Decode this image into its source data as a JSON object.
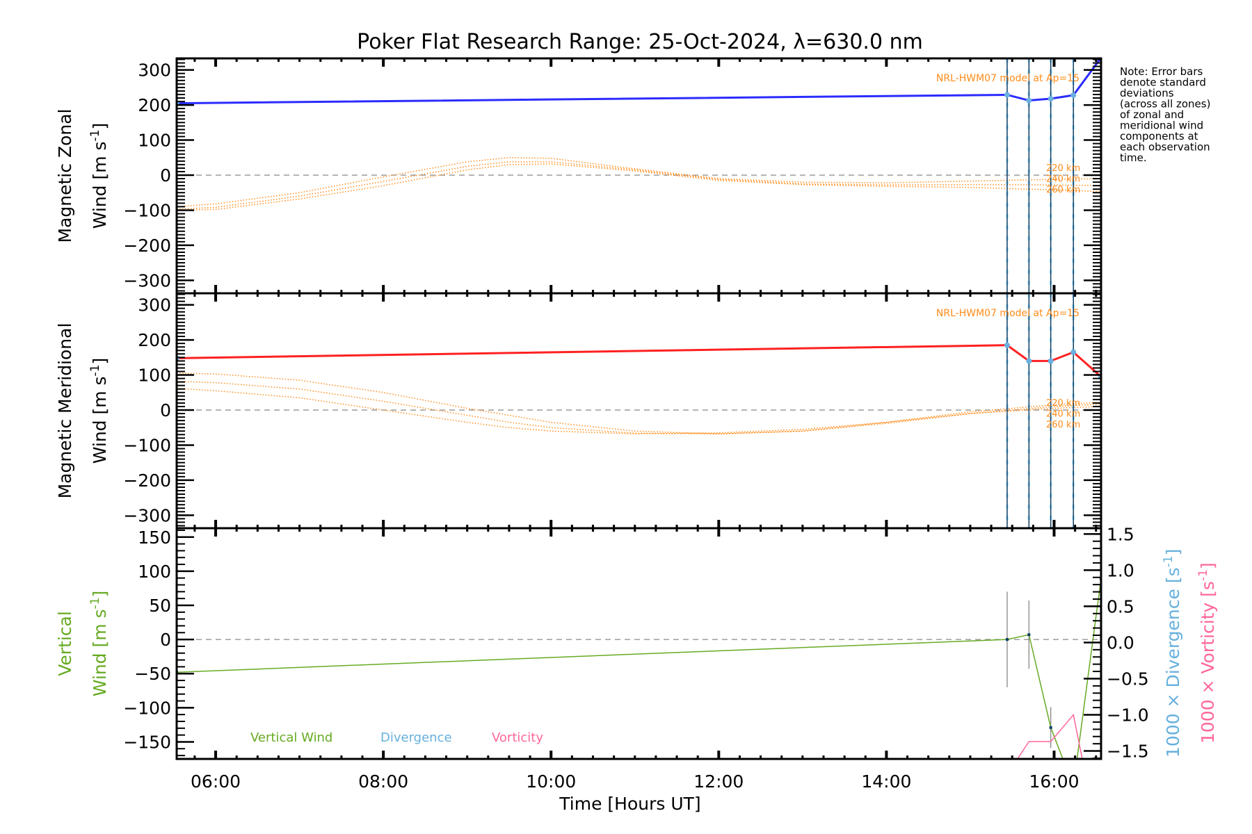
{
  "chart_data": {
    "type": "line",
    "title": "Poker Flat Research Range: 25-Oct-2024, λ=630.0 nm",
    "xlabel": "Time [Hours UT]",
    "xlim": [
      5.535,
      16.56
    ],
    "xticks": [
      6,
      8,
      10,
      12,
      14,
      16
    ],
    "xtick_labels": [
      "06:00",
      "08:00",
      "10:00",
      "12:00",
      "14:00",
      "16:00"
    ],
    "observation_times": [
      15.44,
      15.7,
      15.96,
      16.23
    ],
    "model_label": "NRL-HWM07 model at Ap=15",
    "model_altitudes": [
      "220 km",
      "240 km",
      "260 km"
    ],
    "model_hours": [
      5.535,
      6,
      7,
      8,
      9,
      9.5,
      10,
      11,
      12,
      13,
      14,
      15,
      16,
      16.56
    ],
    "note": [
      "Note: Error bars",
      "denote standard",
      "deviations",
      "(across all zones)",
      "of zonal and",
      "meridional wind",
      "components at",
      "each observation",
      "time."
    ],
    "panels": [
      {
        "ylabel_1": "Magnetic Zonal",
        "ylabel_2": "Wind [m s",
        "ylabel_sup": "-1",
        "ylabel_end": "]",
        "ylim": [
          -337,
          333
        ],
        "yticks": [
          300,
          200,
          100,
          0,
          -100,
          -200,
          -300
        ],
        "ytick_labels": [
          "300",
          "200",
          "100",
          "0",
          "−100",
          "−200",
          "−300"
        ],
        "series": [
          {
            "name": "Zonal wind",
            "color": "#2b2bff",
            "x": [
              5.535,
              15.44,
              15.7,
              15.96,
              16.23,
              16.56
            ],
            "y": [
              205,
              229,
              213,
              218,
              228,
              335
            ]
          }
        ],
        "model": [
          [
            -90,
            -82,
            -50,
            -5,
            38,
            50,
            48,
            18,
            -10,
            -20,
            -22,
            -17,
            -12,
            -10
          ],
          [
            -97,
            -92,
            -60,
            -18,
            25,
            38,
            38,
            15,
            -12,
            -25,
            -28,
            -27,
            -28,
            -30
          ],
          [
            -100,
            -98,
            -68,
            -30,
            15,
            30,
            32,
            12,
            -15,
            -27,
            -32,
            -35,
            -42,
            -47
          ]
        ]
      },
      {
        "ylabel_1": "Magnetic Meridional",
        "ylabel_2": "Wind [m s",
        "ylabel_sup": "-1",
        "ylabel_end": "]",
        "ylim": [
          -337,
          333
        ],
        "yticks": [
          300,
          200,
          100,
          0,
          -100,
          -200,
          -300
        ],
        "ytick_labels": [
          "300",
          "200",
          "100",
          "0",
          "−100",
          "−200",
          "−300"
        ],
        "series": [
          {
            "name": "Meridional wind",
            "color": "#ff2020",
            "x": [
              5.535,
              15.44,
              15.7,
              15.96,
              16.23,
              16.56
            ],
            "y": [
              148,
              185,
              140,
              140,
              165,
              95
            ]
          }
        ],
        "model": [
          [
            105,
            103,
            85,
            50,
            5,
            -15,
            -35,
            -60,
            -68,
            -60,
            -35,
            -5,
            15,
            22
          ],
          [
            82,
            78,
            60,
            25,
            -15,
            -35,
            -50,
            -66,
            -68,
            -60,
            -38,
            -10,
            10,
            17
          ],
          [
            62,
            55,
            35,
            0,
            -35,
            -50,
            -60,
            -68,
            -65,
            -55,
            -35,
            -10,
            5,
            10
          ]
        ]
      },
      {
        "ylabel_1": "Vertical",
        "ylabel_2": "Wind [m s",
        "ylabel_sup": "-1",
        "ylabel_end": "]",
        "ylim": [
          -175,
          163
        ],
        "yticks": [
          150,
          100,
          50,
          0,
          -50,
          -100,
          -150
        ],
        "ytick_labels": [
          "150",
          "100",
          "50",
          "0",
          "−50",
          "−100",
          "−150"
        ],
        "y2lim": [
          -1.61,
          1.58
        ],
        "y2ticks": [
          1.5,
          1.0,
          0.5,
          0.0,
          -0.5,
          -1.0,
          -1.5
        ],
        "y2tick_labels": [
          "1.5",
          "1.0",
          "0.5",
          "0.0",
          "−0.5",
          "−1.0",
          "−1.5"
        ],
        "y2label_div": "1000 × Divergence [s",
        "y2label_vort": "1000 × Vorticity [s",
        "y2label_sup": "-1",
        "y2label_end": "]",
        "legend": [
          "Vertical Wind",
          "Divergence",
          "Vorticity"
        ],
        "legend_colors": [
          "#66aa22",
          "#66b0dd",
          "#ff6699"
        ],
        "vertical_wind": {
          "x": [
            5.535,
            15.44,
            15.7,
            15.96,
            16.23,
            16.56
          ],
          "y": [
            -48,
            0,
            7,
            -129,
            -215,
            89
          ],
          "err": [
            null,
            70,
            50,
            30,
            null,
            null
          ]
        },
        "vorticity": {
          "x": [
            15.5,
            15.7,
            15.96,
            16.23,
            16.36
          ],
          "y": [
            -1.72,
            -1.37,
            -1.37,
            -1.0,
            -1.75
          ]
        }
      }
    ]
  }
}
